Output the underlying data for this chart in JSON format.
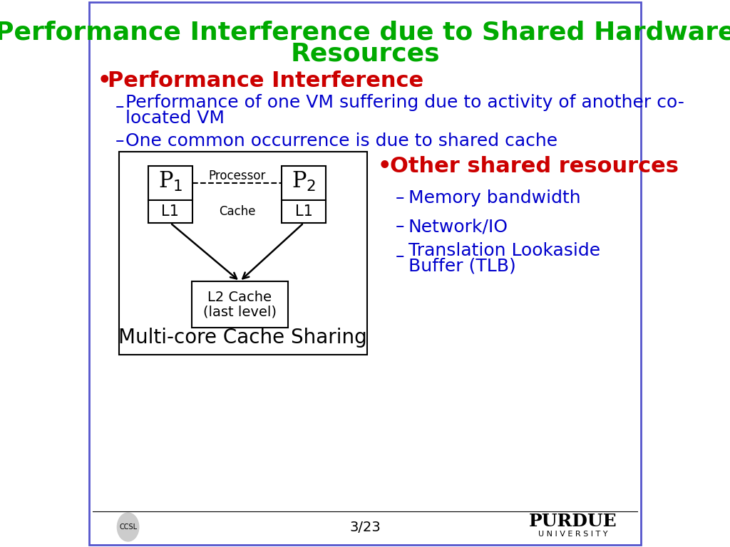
{
  "title_line1": "Performance Interference due to Shared Hardware",
  "title_line2": "Resources",
  "title_color": "#00aa00",
  "title_fontsize": 26,
  "bg_color": "#ffffff",
  "border_color": "#5555cc",
  "bullet1_text": "Performance Interference",
  "bullet1_color": "#cc0000",
  "bullet1_fontsize": 22,
  "sub1_color": "#0000cc",
  "sub1_fontsize": 18,
  "sub2_text": "One common occurrence is due to shared cache",
  "sub2_color": "#0000cc",
  "sub2_fontsize": 18,
  "bullet2_text": "Other shared resources",
  "bullet2_color": "#cc0000",
  "bullet2_fontsize": 22,
  "sub3_text": "Memory bandwidth",
  "sub3_color": "#0000cc",
  "sub3_fontsize": 18,
  "sub4_text": "Network/IO",
  "sub4_color": "#0000cc",
  "sub4_fontsize": 18,
  "sub5_line1": "Translation Lookaside",
  "sub5_line2": "Buffer (TLB)",
  "sub5_color": "#0000cc",
  "sub5_fontsize": 18,
  "diagram_label": "Multi-core Cache Sharing",
  "diagram_label_fontsize": 20,
  "box_color": "#000000",
  "footer_text": "3/23",
  "footer_fontsize": 14
}
